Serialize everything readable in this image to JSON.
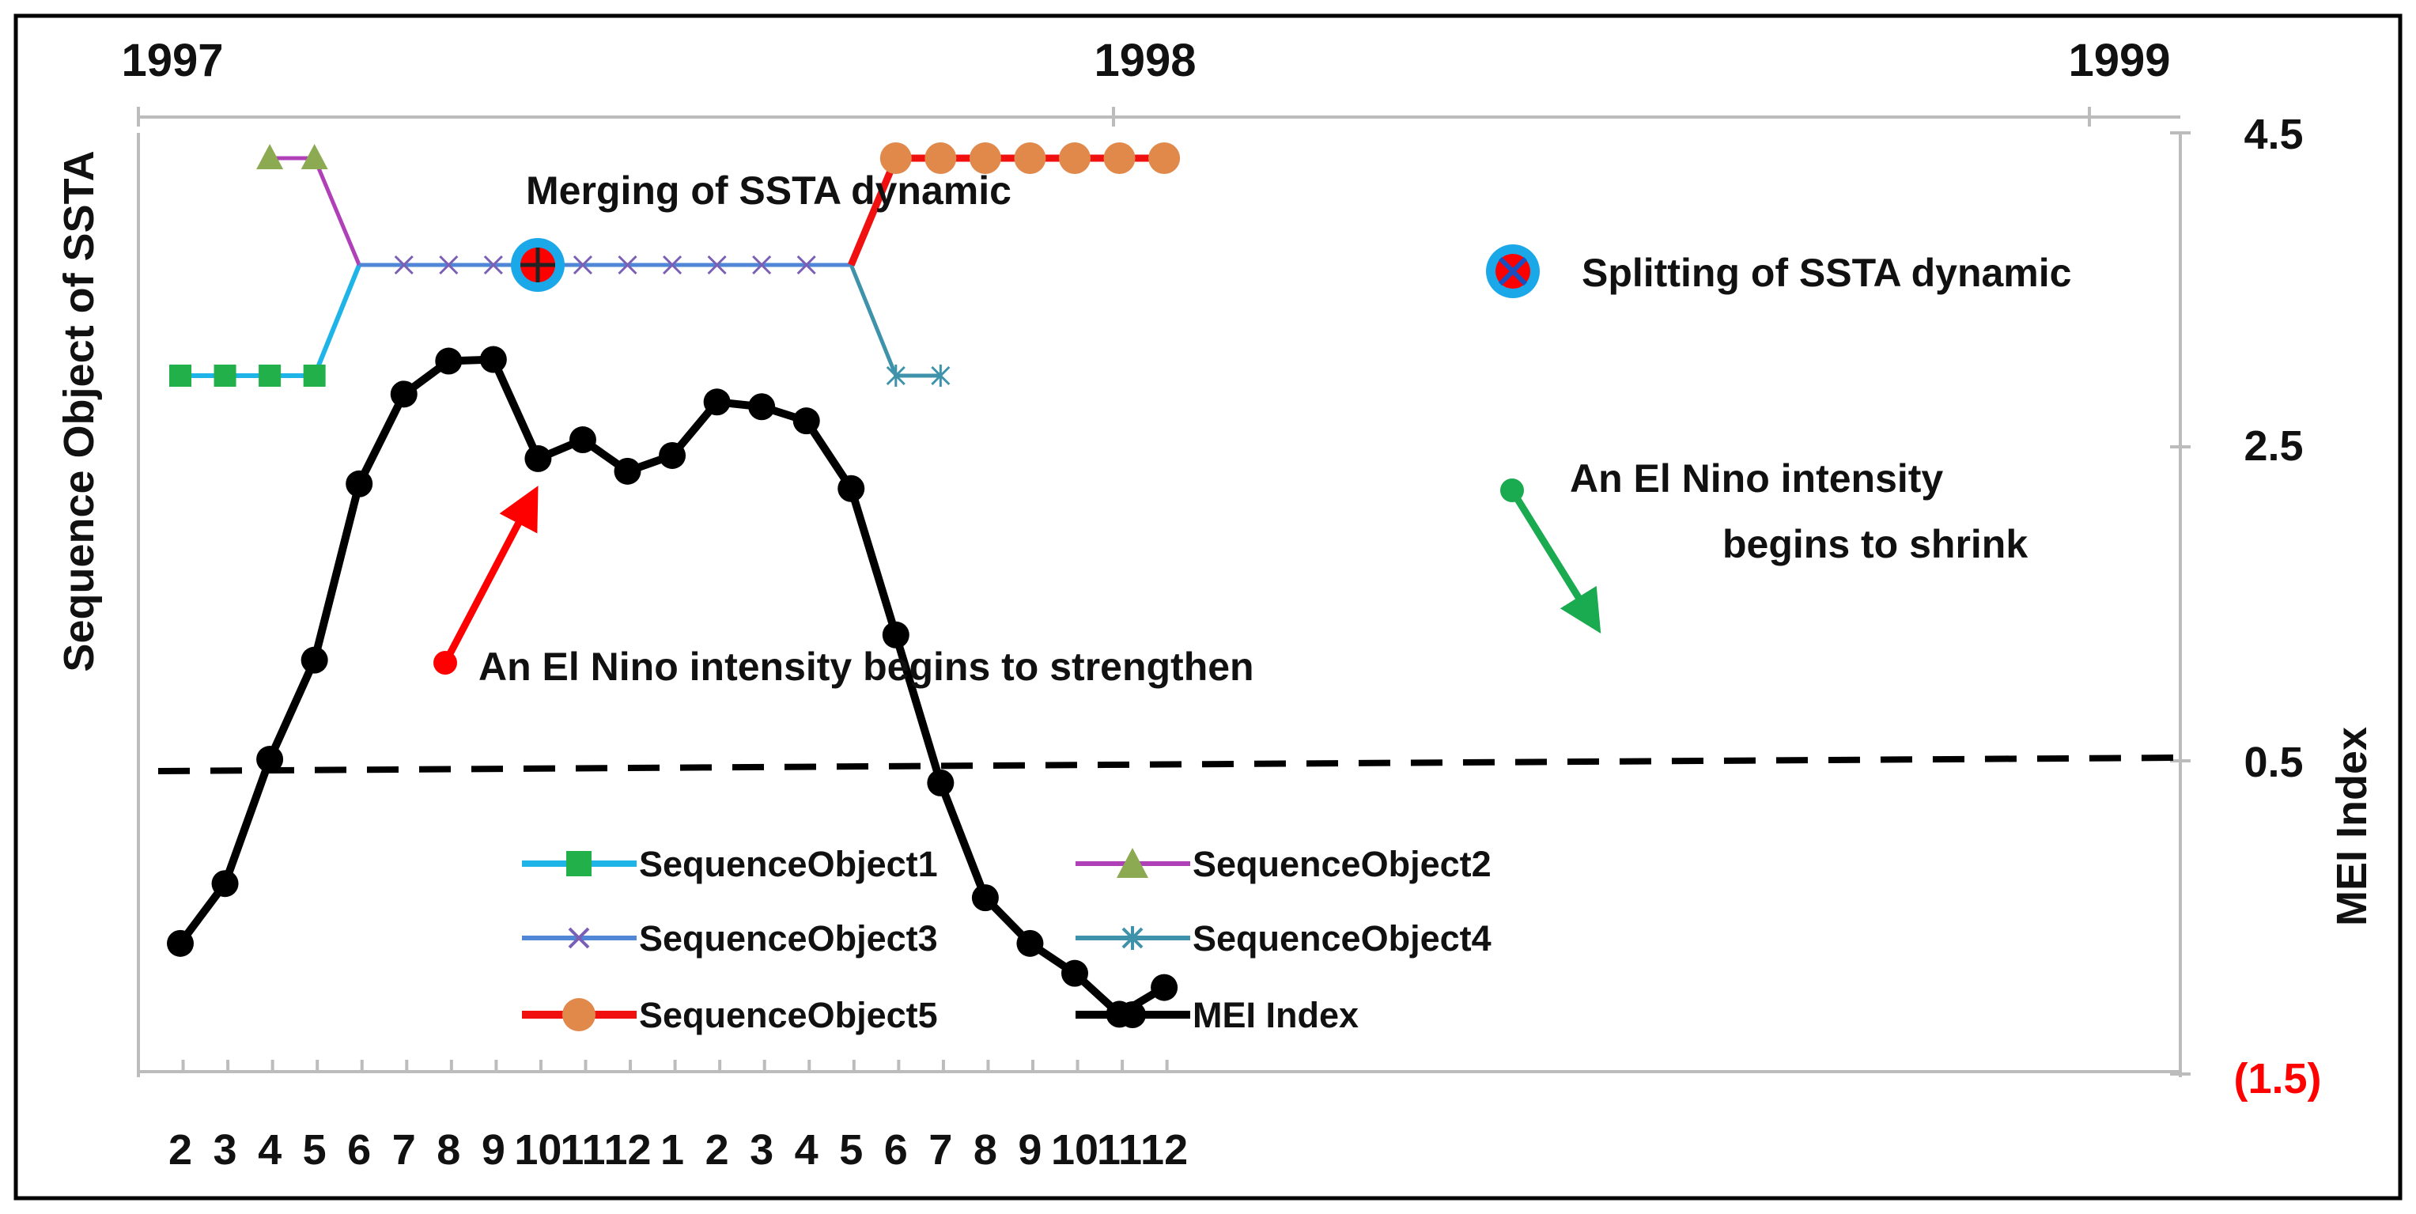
{
  "chart_data": {
    "type": "line",
    "top_axis_years": [
      "1997",
      "1998",
      "1999"
    ],
    "x_labels": [
      "2",
      "3",
      "4",
      "5",
      "6",
      "7",
      "8",
      "9",
      "10",
      "11",
      "12",
      "1",
      "2",
      "3",
      "4",
      "5",
      "6",
      "7",
      "8",
      "9",
      "10",
      "11",
      "12"
    ],
    "left_axis_title": "Sequence Object of SSTA",
    "right_axis_title": "MEI Index",
    "right_axis_ticks": [
      "4.5",
      "2.5",
      "0.5",
      "(1.5)"
    ],
    "right_axis_range": [
      -1.5,
      4.5
    ],
    "threshold": 0.5,
    "sequence_levels": {
      "top": 4.3,
      "mid": 3.6,
      "low": 2.9
    },
    "series": [
      {
        "name": "SequenceObject1",
        "color": "#1fb4e8",
        "marker_color": "#22b04a",
        "marker": "square",
        "points": [
          [
            0,
            2.9
          ],
          [
            1,
            2.9
          ],
          [
            2,
            2.9
          ],
          [
            3,
            2.9
          ],
          [
            4,
            3.6
          ]
        ],
        "marker_indices": [
          0,
          1,
          2,
          3
        ]
      },
      {
        "name": "SequenceObject2",
        "color": "#b040b8",
        "marker_color": "#8caa52",
        "marker": "triangle",
        "points": [
          [
            2,
            4.3
          ],
          [
            3,
            4.3
          ],
          [
            4,
            3.6
          ]
        ],
        "marker_indices": [
          0,
          1
        ]
      },
      {
        "name": "SequenceObject3",
        "color": "#4f86d6",
        "marker_color": "#7a5fb4",
        "marker": "x",
        "points": [
          [
            4,
            3.6
          ],
          [
            5,
            3.6
          ],
          [
            6,
            3.6
          ],
          [
            7,
            3.6
          ],
          [
            8,
            3.6
          ],
          [
            9,
            3.6
          ],
          [
            10,
            3.6
          ],
          [
            11,
            3.6
          ],
          [
            12,
            3.6
          ],
          [
            13,
            3.6
          ],
          [
            14,
            3.6
          ],
          [
            15,
            3.6
          ]
        ],
        "marker_indices": [
          1,
          2,
          3,
          4,
          5,
          6,
          7,
          8,
          9,
          10
        ]
      },
      {
        "name": "SequenceObject4",
        "color": "#3e92aa",
        "marker_color": "#3e92aa",
        "marker": "asterisk",
        "points": [
          [
            15,
            3.6
          ],
          [
            16,
            2.9
          ],
          [
            17,
            2.9
          ]
        ],
        "marker_indices": [
          1,
          2
        ]
      },
      {
        "name": "SequenceObject5",
        "color": "#f01010",
        "marker_color": "#e0894a",
        "marker": "circle",
        "points": [
          [
            15,
            3.6
          ],
          [
            16,
            4.3
          ],
          [
            17,
            4.3
          ],
          [
            18,
            4.3
          ],
          [
            19,
            4.3
          ],
          [
            20,
            4.3
          ],
          [
            21,
            4.3
          ],
          [
            22,
            4.3
          ]
        ],
        "marker_indices": [
          1,
          2,
          3,
          4,
          5,
          6,
          7
        ]
      },
      {
        "name": "MEI Index",
        "color": "#000000",
        "marker_color": "#000000",
        "marker": "circle",
        "values": [
          -0.65,
          -0.27,
          0.52,
          1.15,
          2.27,
          2.84,
          3.05,
          3.06,
          2.43,
          2.55,
          2.35,
          2.45,
          2.79,
          2.76,
          2.67,
          2.24,
          1.31,
          0.37,
          -0.36,
          -0.65,
          -0.84,
          -1.1,
          -0.93
        ]
      }
    ],
    "annotations": {
      "merge": "Merging of SSTA dynamic",
      "split": "Splitting of SSTA dynamic",
      "strengthen": "An El Nino intensity begins to strengthen",
      "shrink_line1": "An El Nino intensity",
      "shrink_line2": "begins to shrink"
    },
    "legend": [
      "SequenceObject1",
      "SequenceObject2",
      "SequenceObject3",
      "SequenceObject4",
      "SequenceObject5",
      "MEI Index"
    ],
    "colors": {
      "red_label": "#ff0000",
      "arrow_up": "#ff0000",
      "arrow_down": "#1aaa50",
      "event_ring": "#1aa8e8",
      "event_fill": "#ff0000"
    }
  }
}
